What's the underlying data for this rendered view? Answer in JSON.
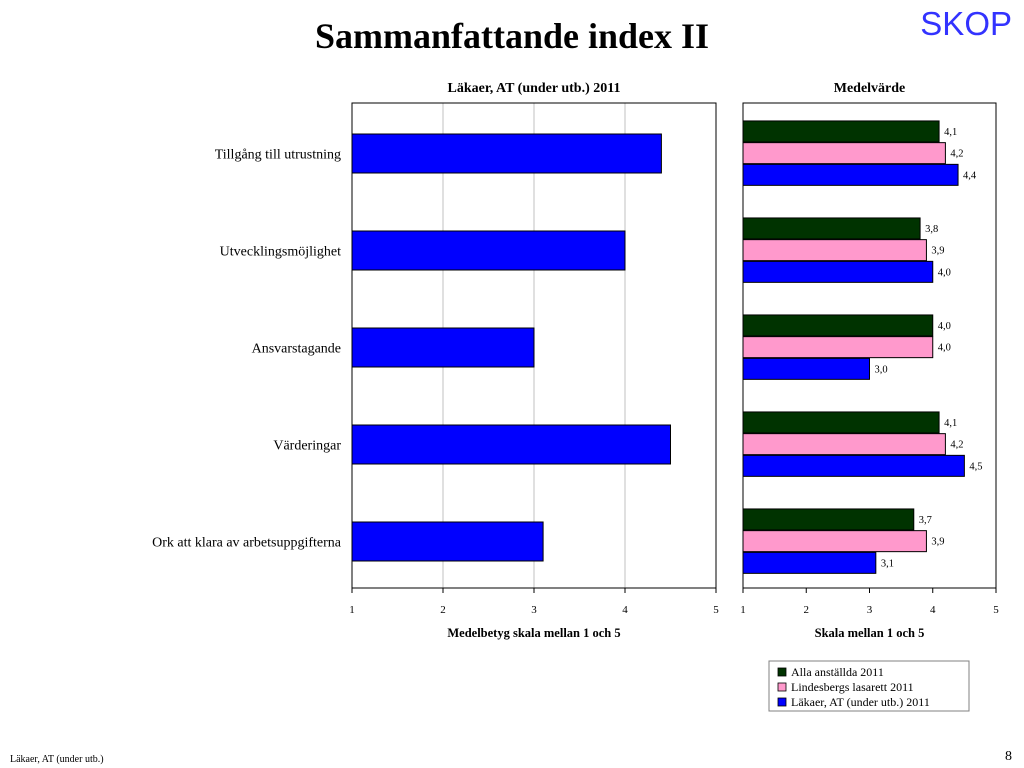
{
  "slide": {
    "title": "Sammanfattande index II",
    "brand": "SKOP",
    "footer_text": "Läkaer, AT (under utb.)",
    "page_number": "8",
    "colors": {
      "brand": "#3333FF",
      "text": "#000000",
      "background": "#FFFFFF"
    }
  },
  "chart_data": [
    {
      "type": "bar",
      "orientation": "horizontal",
      "title": "Läkaer, AT (under utb.) 2011",
      "xlabel": "Medelbetyg skala mellan 1 och 5",
      "categories": [
        "Tillgång till utrustning",
        "Utvecklingsmöjlighet",
        "Ansvarstagande",
        "Värderingar",
        "Ork att klara av arbetsuppgifterna"
      ],
      "values": [
        4.4,
        4.0,
        3.0,
        4.5,
        3.1
      ],
      "xlim": [
        1,
        5
      ],
      "xticks": [
        "1",
        "2",
        "3",
        "4",
        "5"
      ],
      "grid": true,
      "color": "#0000FF"
    },
    {
      "type": "bar",
      "orientation": "horizontal",
      "title": "Medelvärde",
      "xlabel": "Skala mellan 1 och 5",
      "series": [
        {
          "name": "Alla anställda 2011",
          "color": "#003300",
          "values": [
            4.1,
            3.8,
            4.0,
            4.1,
            3.7
          ]
        },
        {
          "name": "Lindesbergs lasarett 2011",
          "color": "#FF99CC",
          "values": [
            4.2,
            3.9,
            4.0,
            4.2,
            3.9
          ]
        },
        {
          "name": "Läkaer, AT (under utb.) 2011",
          "color": "#0000FF",
          "values": [
            4.4,
            4.0,
            3.0,
            4.5,
            3.1
          ]
        }
      ],
      "xlim": [
        1,
        5
      ],
      "xticks": [
        "1",
        "2",
        "3",
        "4",
        "5"
      ],
      "grid": false,
      "data_labels": true,
      "legend": "bottom-right"
    }
  ]
}
